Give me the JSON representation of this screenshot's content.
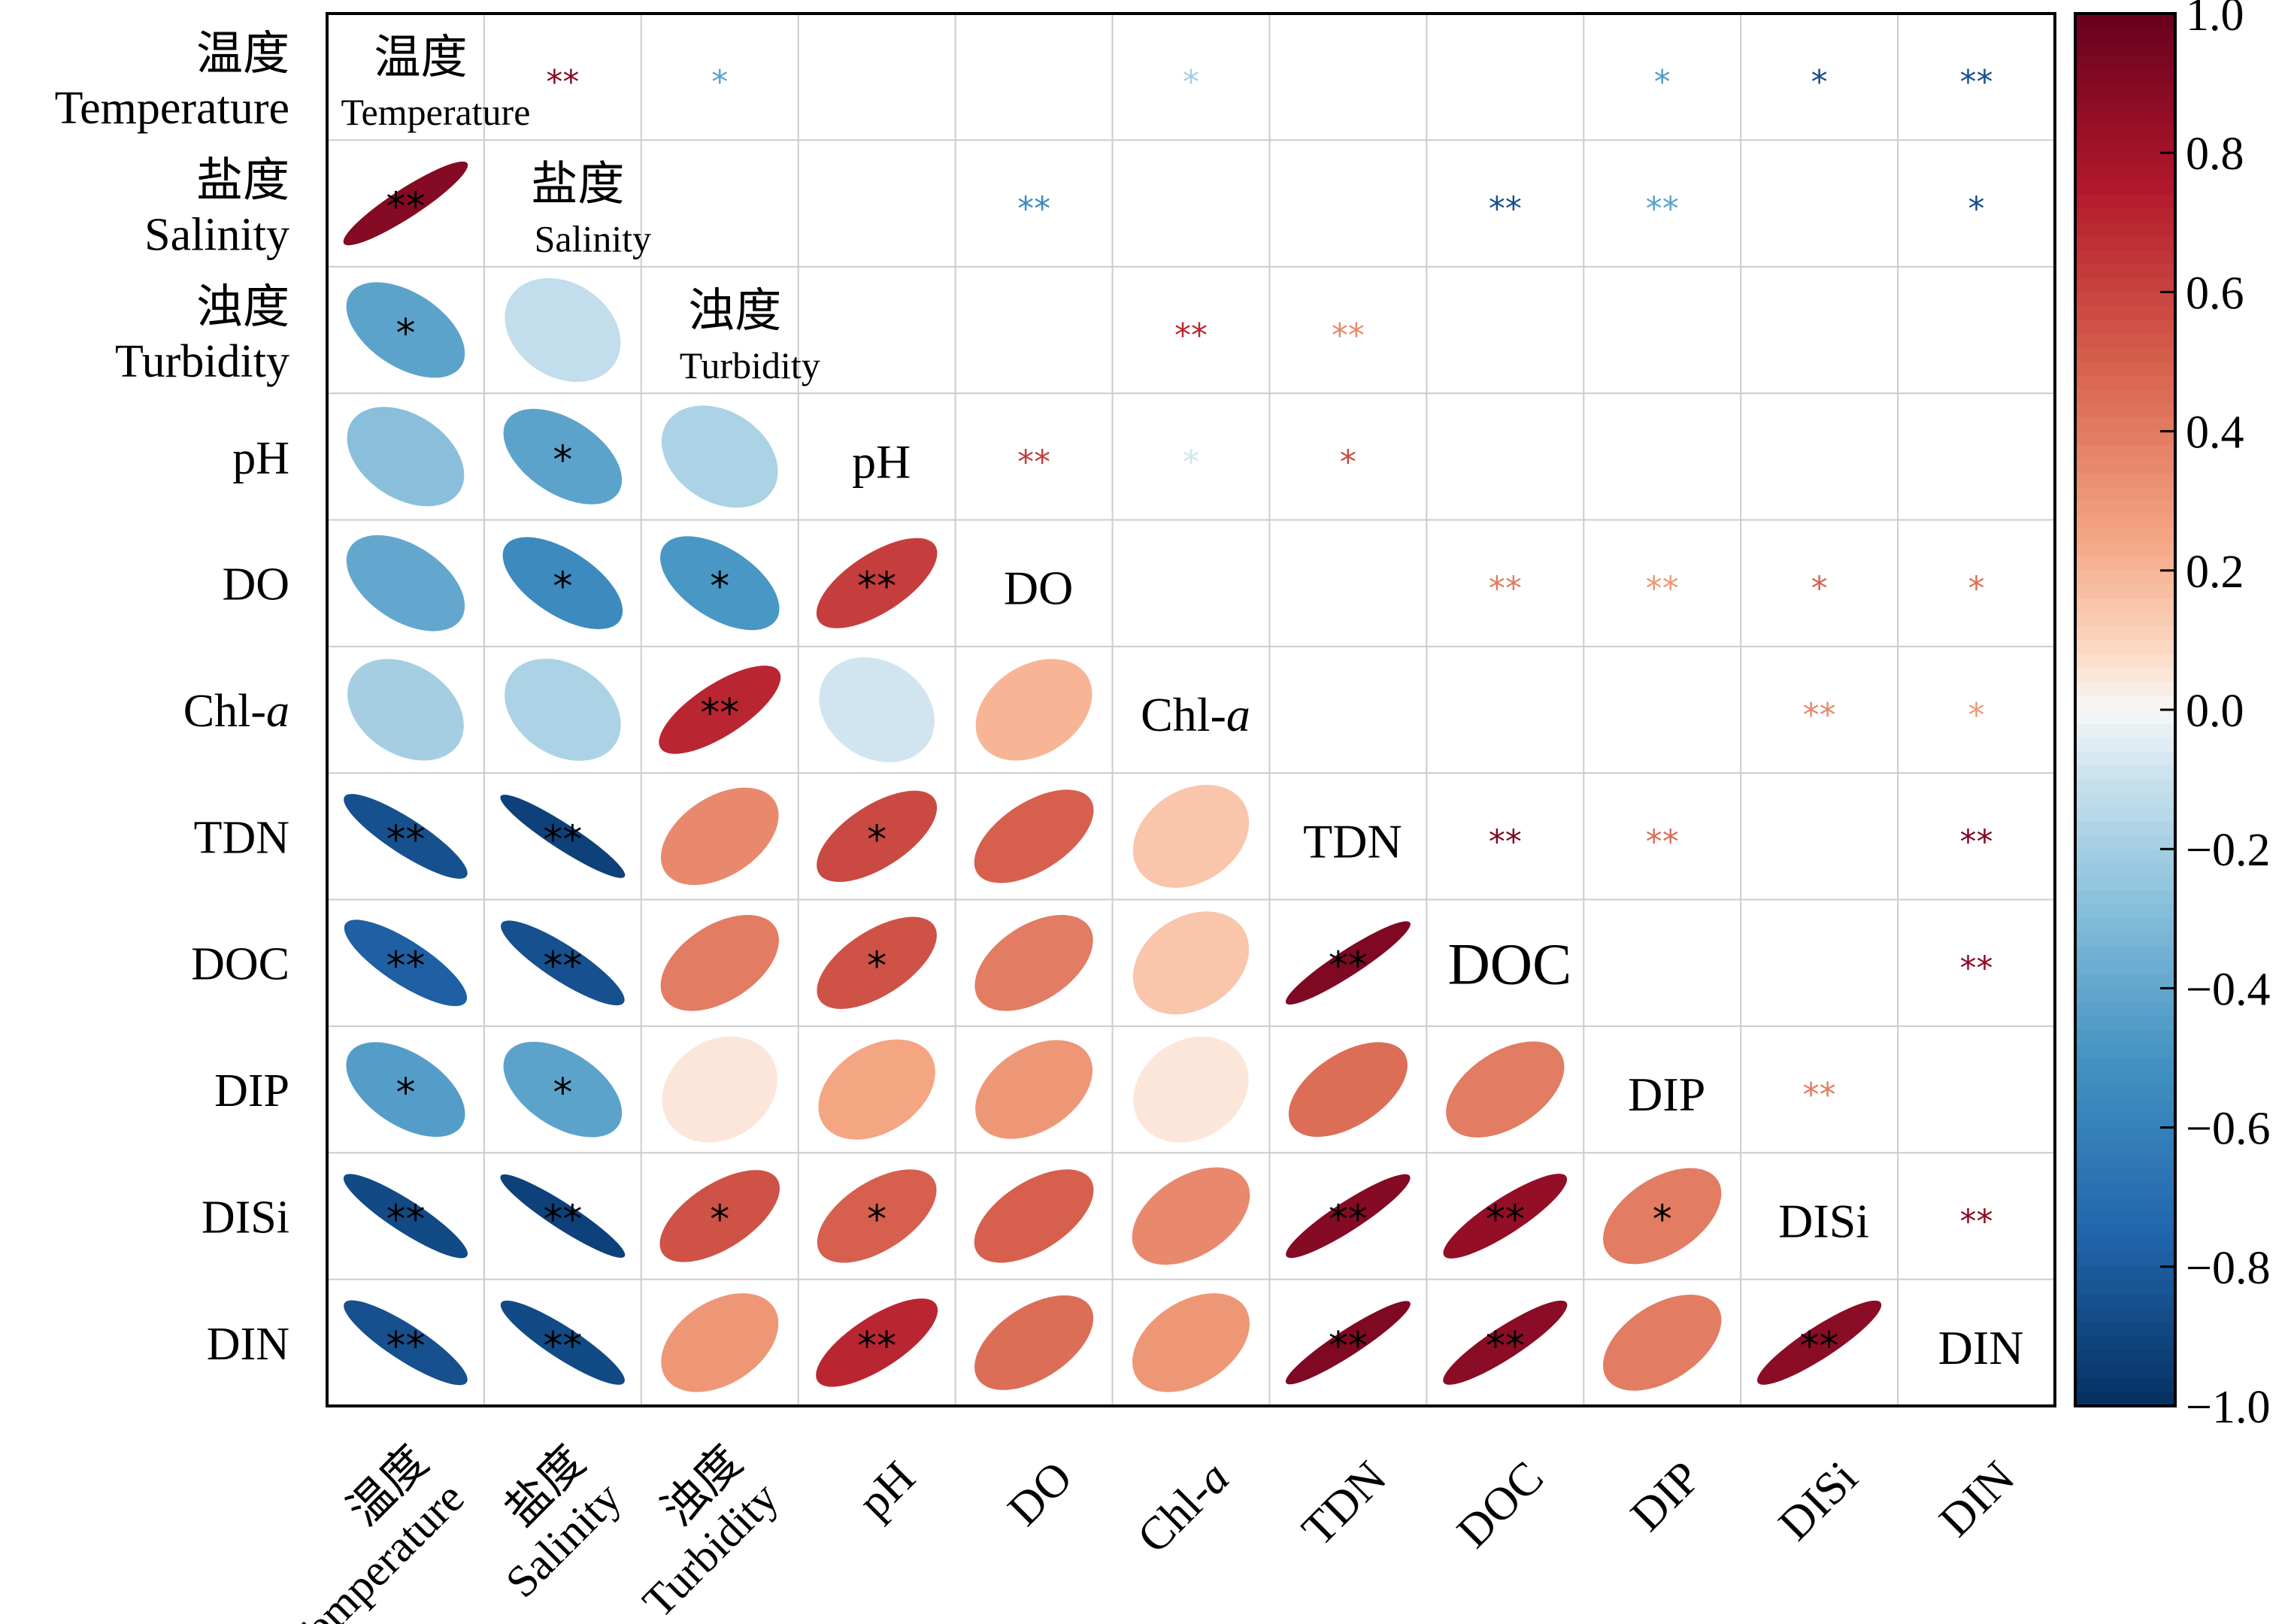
{
  "chart_data": {
    "type": "heatmap",
    "subtype": "correlation-matrix-mixed (lower: ellipses, upper: significance stars)",
    "variables": [
      {
        "cn": "温度",
        "en": "Temperature"
      },
      {
        "cn": "盐度",
        "en": "Salinity"
      },
      {
        "cn": "浊度",
        "en": "Turbidity"
      },
      {
        "cn": "",
        "en": "pH"
      },
      {
        "cn": "",
        "en": "DO"
      },
      {
        "cn": "",
        "en": "Chl-",
        "en_italic": "a"
      },
      {
        "cn": "",
        "en": "TDN"
      },
      {
        "cn": "",
        "en": "DOC"
      },
      {
        "cn": "",
        "en": "DIP"
      },
      {
        "cn": "",
        "en": "DISi"
      },
      {
        "cn": "",
        "en": "DIN"
      }
    ],
    "correlations": [
      [
        1.0,
        0.9,
        -0.42,
        -0.28,
        -0.4,
        -0.2,
        -0.85,
        -0.78,
        -0.45,
        -0.88,
        -0.85
      ],
      [
        0.9,
        1.0,
        -0.12,
        -0.42,
        -0.55,
        -0.18,
        -0.92,
        -0.85,
        -0.42,
        -0.92,
        -0.88
      ],
      [
        -0.42,
        -0.12,
        1.0,
        -0.18,
        -0.48,
        0.7,
        0.35,
        0.4,
        0.05,
        0.55,
        0.3
      ],
      [
        -0.28,
        -0.42,
        -0.18,
        1.0,
        0.62,
        -0.08,
        0.58,
        0.55,
        0.25,
        0.5,
        0.7
      ],
      [
        -0.4,
        -0.55,
        -0.48,
        0.62,
        1.0,
        0.2,
        0.5,
        0.4,
        0.3,
        0.5,
        0.45
      ],
      [
        -0.2,
        -0.18,
        0.7,
        -0.08,
        0.2,
        1.0,
        0.15,
        0.15,
        0.05,
        0.35,
        0.3
      ],
      [
        -0.85,
        -0.92,
        0.35,
        0.58,
        0.5,
        0.15,
        1.0,
        0.92,
        0.45,
        0.9,
        0.92
      ],
      [
        -0.78,
        -0.85,
        0.4,
        0.55,
        0.4,
        0.15,
        0.92,
        1.0,
        0.4,
        0.85,
        0.88
      ],
      [
        -0.45,
        -0.42,
        0.05,
        0.25,
        0.3,
        0.05,
        0.45,
        0.4,
        1.0,
        0.4,
        0.4
      ],
      [
        -0.88,
        -0.92,
        0.55,
        0.5,
        0.5,
        0.35,
        0.9,
        0.85,
        0.4,
        1.0,
        0.88
      ],
      [
        -0.85,
        -0.88,
        0.3,
        0.7,
        0.45,
        0.3,
        0.92,
        0.88,
        0.4,
        0.88,
        1.0
      ]
    ],
    "significance": [
      [
        "",
        "**",
        "*",
        "",
        "",
        "*",
        "",
        "",
        "*",
        "*",
        "**"
      ],
      [
        "**",
        "",
        "",
        "",
        "**",
        "",
        "",
        "**",
        "**",
        "",
        "*"
      ],
      [
        "*",
        "",
        "",
        "",
        "",
        "**",
        "**",
        "",
        "",
        "",
        ""
      ],
      [
        "",
        "*",
        "",
        "",
        "**",
        "*",
        "*",
        "",
        "",
        "",
        ""
      ],
      [
        "",
        "*",
        "*",
        "**",
        "",
        "",
        "",
        "**",
        "**",
        "*",
        "*"
      ],
      [
        "",
        "",
        "**",
        "",
        "",
        "",
        "",
        "",
        "",
        "**",
        "*"
      ],
      [
        "**",
        "**",
        "",
        "*",
        "",
        "",
        "",
        "**",
        "**",
        "",
        "**"
      ],
      [
        "**",
        "**",
        "",
        "*",
        "",
        "",
        "**",
        "",
        "",
        "",
        "**"
      ],
      [
        "*",
        "*",
        "",
        "",
        "",
        "",
        "",
        "",
        "",
        "**",
        ""
      ],
      [
        "**",
        "**",
        "*",
        "*",
        "",
        "",
        "**",
        "**",
        "*",
        "",
        "**"
      ],
      [
        "**",
        "**",
        "",
        "**",
        "",
        "",
        "**",
        "**",
        "",
        "**",
        ""
      ]
    ],
    "colorbar": {
      "range": [
        -1.0,
        1.0
      ],
      "ticks": [
        "1.0",
        "0.8",
        "0.6",
        "0.4",
        "0.2",
        "0.0",
        "−0.2",
        "−0.4",
        "−0.6",
        "−0.8",
        "−1.0"
      ],
      "negative_color": "#053061",
      "zero_color": "#f7f7f7",
      "positive_color": "#67001f"
    },
    "grid": true
  }
}
